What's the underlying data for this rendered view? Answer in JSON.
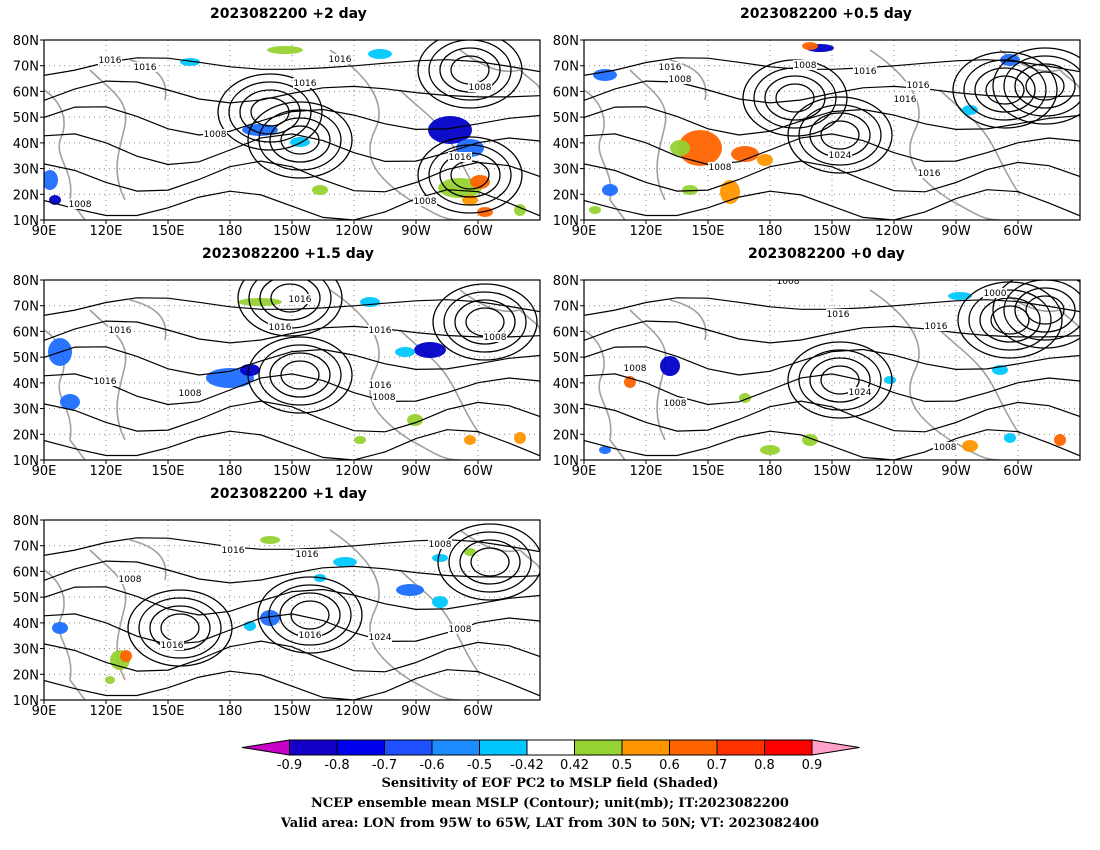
{
  "panels": [
    {
      "title": "2023082200 +2 day",
      "lat_labels": [
        "80N",
        "70N",
        "60N",
        "50N",
        "40N",
        "30N",
        "20N",
        "10N"
      ],
      "lon_labels": [
        "90E",
        "120E",
        "150E",
        "180",
        "150W",
        "120W",
        "90W",
        "60W"
      ],
      "isobar_labels": [
        "1016",
        "1016",
        "1016",
        "1016",
        "1008",
        "1008",
        "1016",
        "1008",
        "1008"
      ]
    },
    {
      "title": "2023082200 +0.5 day",
      "lat_labels": [
        "80N",
        "70N",
        "60N",
        "50N",
        "40N",
        "30N",
        "20N",
        "10N"
      ],
      "lon_labels": [
        "90E",
        "120E",
        "150E",
        "180",
        "150W",
        "120W",
        "90W",
        "60W"
      ],
      "isobar_labels": [
        "1016",
        "1008",
        "1016",
        "1008",
        "1016",
        "1016",
        "1024",
        "1008",
        "1016"
      ]
    },
    {
      "title": "2023082200 +1.5 day",
      "lat_labels": [
        "80N",
        "70N",
        "60N",
        "50N",
        "40N",
        "30N",
        "20N",
        "10N"
      ],
      "lon_labels": [
        "90E",
        "120E",
        "150E",
        "180",
        "150W",
        "120W",
        "90W",
        "60W"
      ],
      "isobar_labels": [
        "1016",
        "1016",
        "1016",
        "1016",
        "1008",
        "1016",
        "1016",
        "1008",
        "1008"
      ]
    },
    {
      "title": "2023082200 +0 day",
      "lat_labels": [
        "80N",
        "70N",
        "60N",
        "50N",
        "40N",
        "30N",
        "20N",
        "10N"
      ],
      "lon_labels": [
        "90E",
        "120E",
        "150E",
        "180",
        "150W",
        "120W",
        "90W",
        "60W"
      ],
      "isobar_labels": [
        "1008",
        "1000",
        "1016",
        "1016",
        "1008",
        "1008",
        "1024",
        "1008"
      ]
    },
    {
      "title": "2023082200 +1 day",
      "lat_labels": [
        "80N",
        "70N",
        "60N",
        "50N",
        "40N",
        "30N",
        "20N",
        "10N"
      ],
      "lon_labels": [
        "90E",
        "120E",
        "150E",
        "180",
        "150W",
        "120W",
        "90W",
        "60W"
      ],
      "isobar_labels": [
        "1016",
        "1016",
        "1008",
        "1008",
        "1016",
        "1024",
        "1008",
        "1016"
      ]
    }
  ],
  "colorbar": {
    "tick_labels": [
      "-0.9",
      "-0.8",
      "-0.7",
      "-0.6",
      "-0.5",
      "-0.42",
      "0.42",
      "0.5",
      "0.6",
      "0.7",
      "0.8",
      "0.9"
    ],
    "colors": [
      "#c800c8",
      "#1400c8",
      "#0000f0",
      "#1e50ff",
      "#1e8cff",
      "#00c8ff",
      "#ffffff",
      "#96d232",
      "#ff9600",
      "#ff6400",
      "#ff3200",
      "#ff0000",
      "#ffa0c8"
    ]
  },
  "colors": {
    "coastline": "#a0a0a0",
    "isobar": "#000000",
    "neg_dark": "#0000c8",
    "neg_mid": "#1e6eff",
    "neg_light": "#00c8ff",
    "pos_green": "#96d232",
    "pos_orange": "#ff9600",
    "pos_darkorange": "#ff6400"
  },
  "captions": {
    "line1": "Sensitivity of EOF PC2 to MSLP field (Shaded)",
    "line2": "NCEP ensemble mean MSLP (Contour); unit(mb); IT:2023082200",
    "line3": "Valid area: LON from 95W to 65W, LAT from 30N to 50N; VT: 2023082400"
  }
}
